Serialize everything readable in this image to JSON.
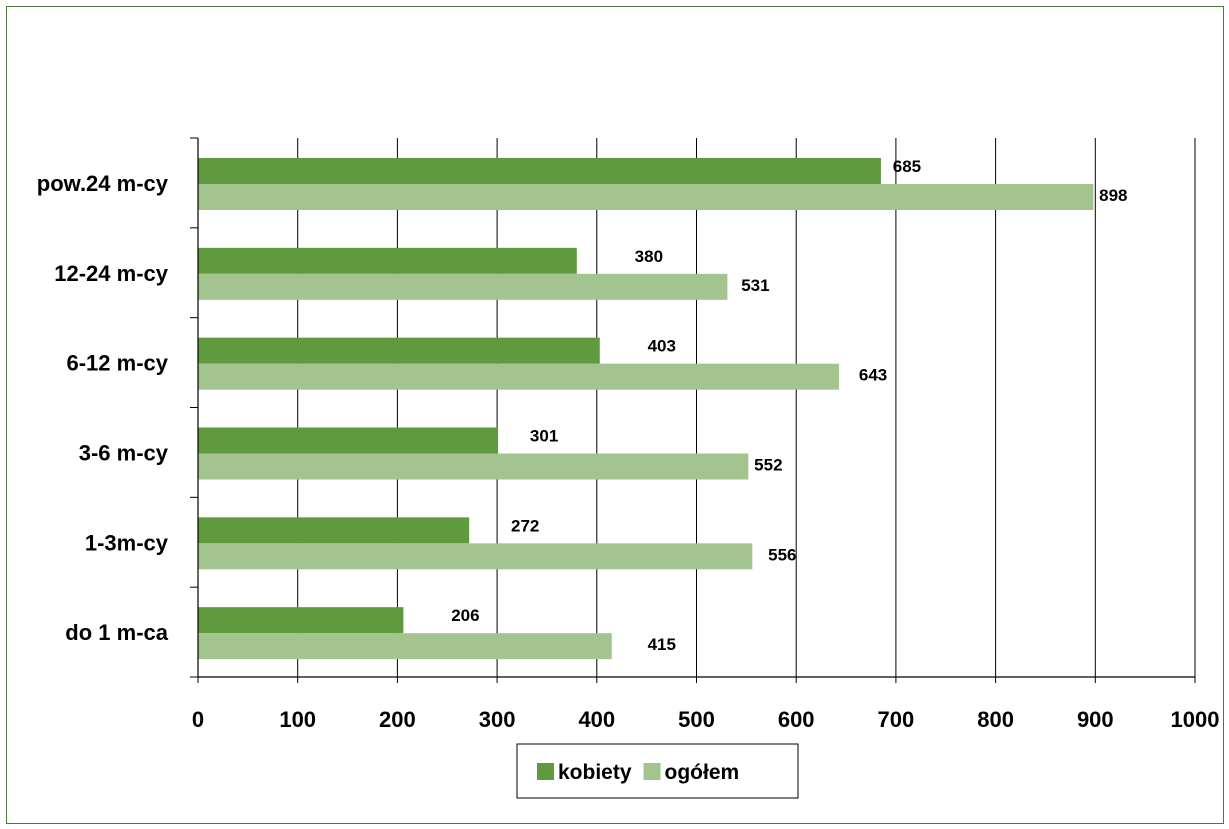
{
  "chart_data": {
    "type": "bar",
    "orientation": "horizontal",
    "title": "",
    "xlabel": "",
    "ylabel": "",
    "categories": [
      "do 1 m-ca",
      "1-3m-cy",
      "3-6 m-cy",
      "6-12 m-cy",
      "12-24 m-cy",
      "pow.24 m-cy"
    ],
    "series": [
      {
        "name": "kobiety",
        "color": "#5f9a3e",
        "values": [
          206,
          272,
          301,
          403,
          380,
          685
        ]
      },
      {
        "name": "ogółem",
        "color": "#a3c48e",
        "values": [
          415,
          556,
          552,
          643,
          531,
          898
        ]
      }
    ],
    "xlim": [
      0,
      1000
    ],
    "xticks": [
      0,
      100,
      200,
      300,
      400,
      500,
      600,
      700,
      800,
      900,
      1000
    ],
    "grid": "vertical",
    "legend_position": "bottom"
  }
}
